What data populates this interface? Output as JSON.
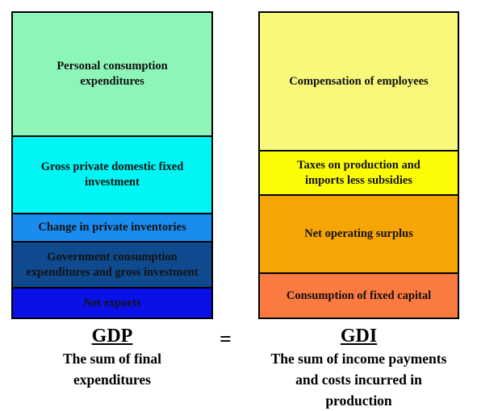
{
  "gdp": {
    "title": "GDP",
    "subtitle": "The sum of final\nexpenditures",
    "blocks": [
      {
        "label": "Personal consumption\nexpenditures",
        "color": "#8df5b7"
      },
      {
        "label": "Gross private domestic fixed\ninvestment",
        "color": "#00f5f5"
      },
      {
        "label": "Change in private inventories",
        "color": "#1a8cf0"
      },
      {
        "label": "Government consumption\nexpenditures and gross investment",
        "color": "#0f4a8e"
      },
      {
        "label": "Net exports",
        "color": "#0a10e8"
      }
    ]
  },
  "equals_sign": "=",
  "gdi": {
    "title": "GDI",
    "subtitle": "The sum of income payments\nand costs incurred in\nproduction",
    "blocks": [
      {
        "label": "Compensation of employees",
        "color": "#f8f87a"
      },
      {
        "label": "Taxes on production and\nimports less subsidies",
        "color": "#fcfc05"
      },
      {
        "label": "Net operating surplus",
        "color": "#f7a505"
      },
      {
        "label": "Consumption of fixed capital",
        "color": "#fb7a40"
      }
    ]
  }
}
